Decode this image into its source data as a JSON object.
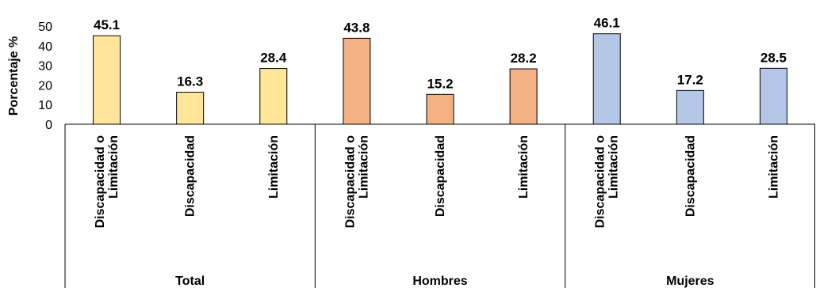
{
  "chart_data": {
    "type": "bar",
    "ylabel": "Porcentaje %",
    "ylim": [
      0,
      50
    ],
    "yticks": [
      "0",
      "10",
      "20",
      "30",
      "40",
      "50"
    ],
    "grid": false,
    "groups": [
      {
        "name": "Total",
        "color": "#FFE699",
        "categories": [
          [
            "Discapacidad o",
            "Limitación"
          ],
          [
            "Discapacidad"
          ],
          [
            "Limitación"
          ]
        ],
        "values": [
          45.1,
          16.3,
          28.4
        ],
        "labels": [
          "45.1",
          "16.3",
          "28.4"
        ]
      },
      {
        "name": "Hombres",
        "color": "#F4B183",
        "categories": [
          [
            "Discapacidad o",
            "Limitación"
          ],
          [
            "Discapacidad"
          ],
          [
            "Limitación"
          ]
        ],
        "values": [
          43.8,
          15.2,
          28.2
        ],
        "labels": [
          "43.8",
          "15.2",
          "28.2"
        ]
      },
      {
        "name": "Mujeres",
        "color": "#B4C7E7",
        "categories": [
          [
            "Discapacidad o",
            "Limitación"
          ],
          [
            "Discapacidad"
          ],
          [
            "Limitación"
          ]
        ],
        "values": [
          46.1,
          17.2,
          28.5
        ],
        "labels": [
          "46.1",
          "17.2",
          "28.5"
        ]
      }
    ]
  }
}
